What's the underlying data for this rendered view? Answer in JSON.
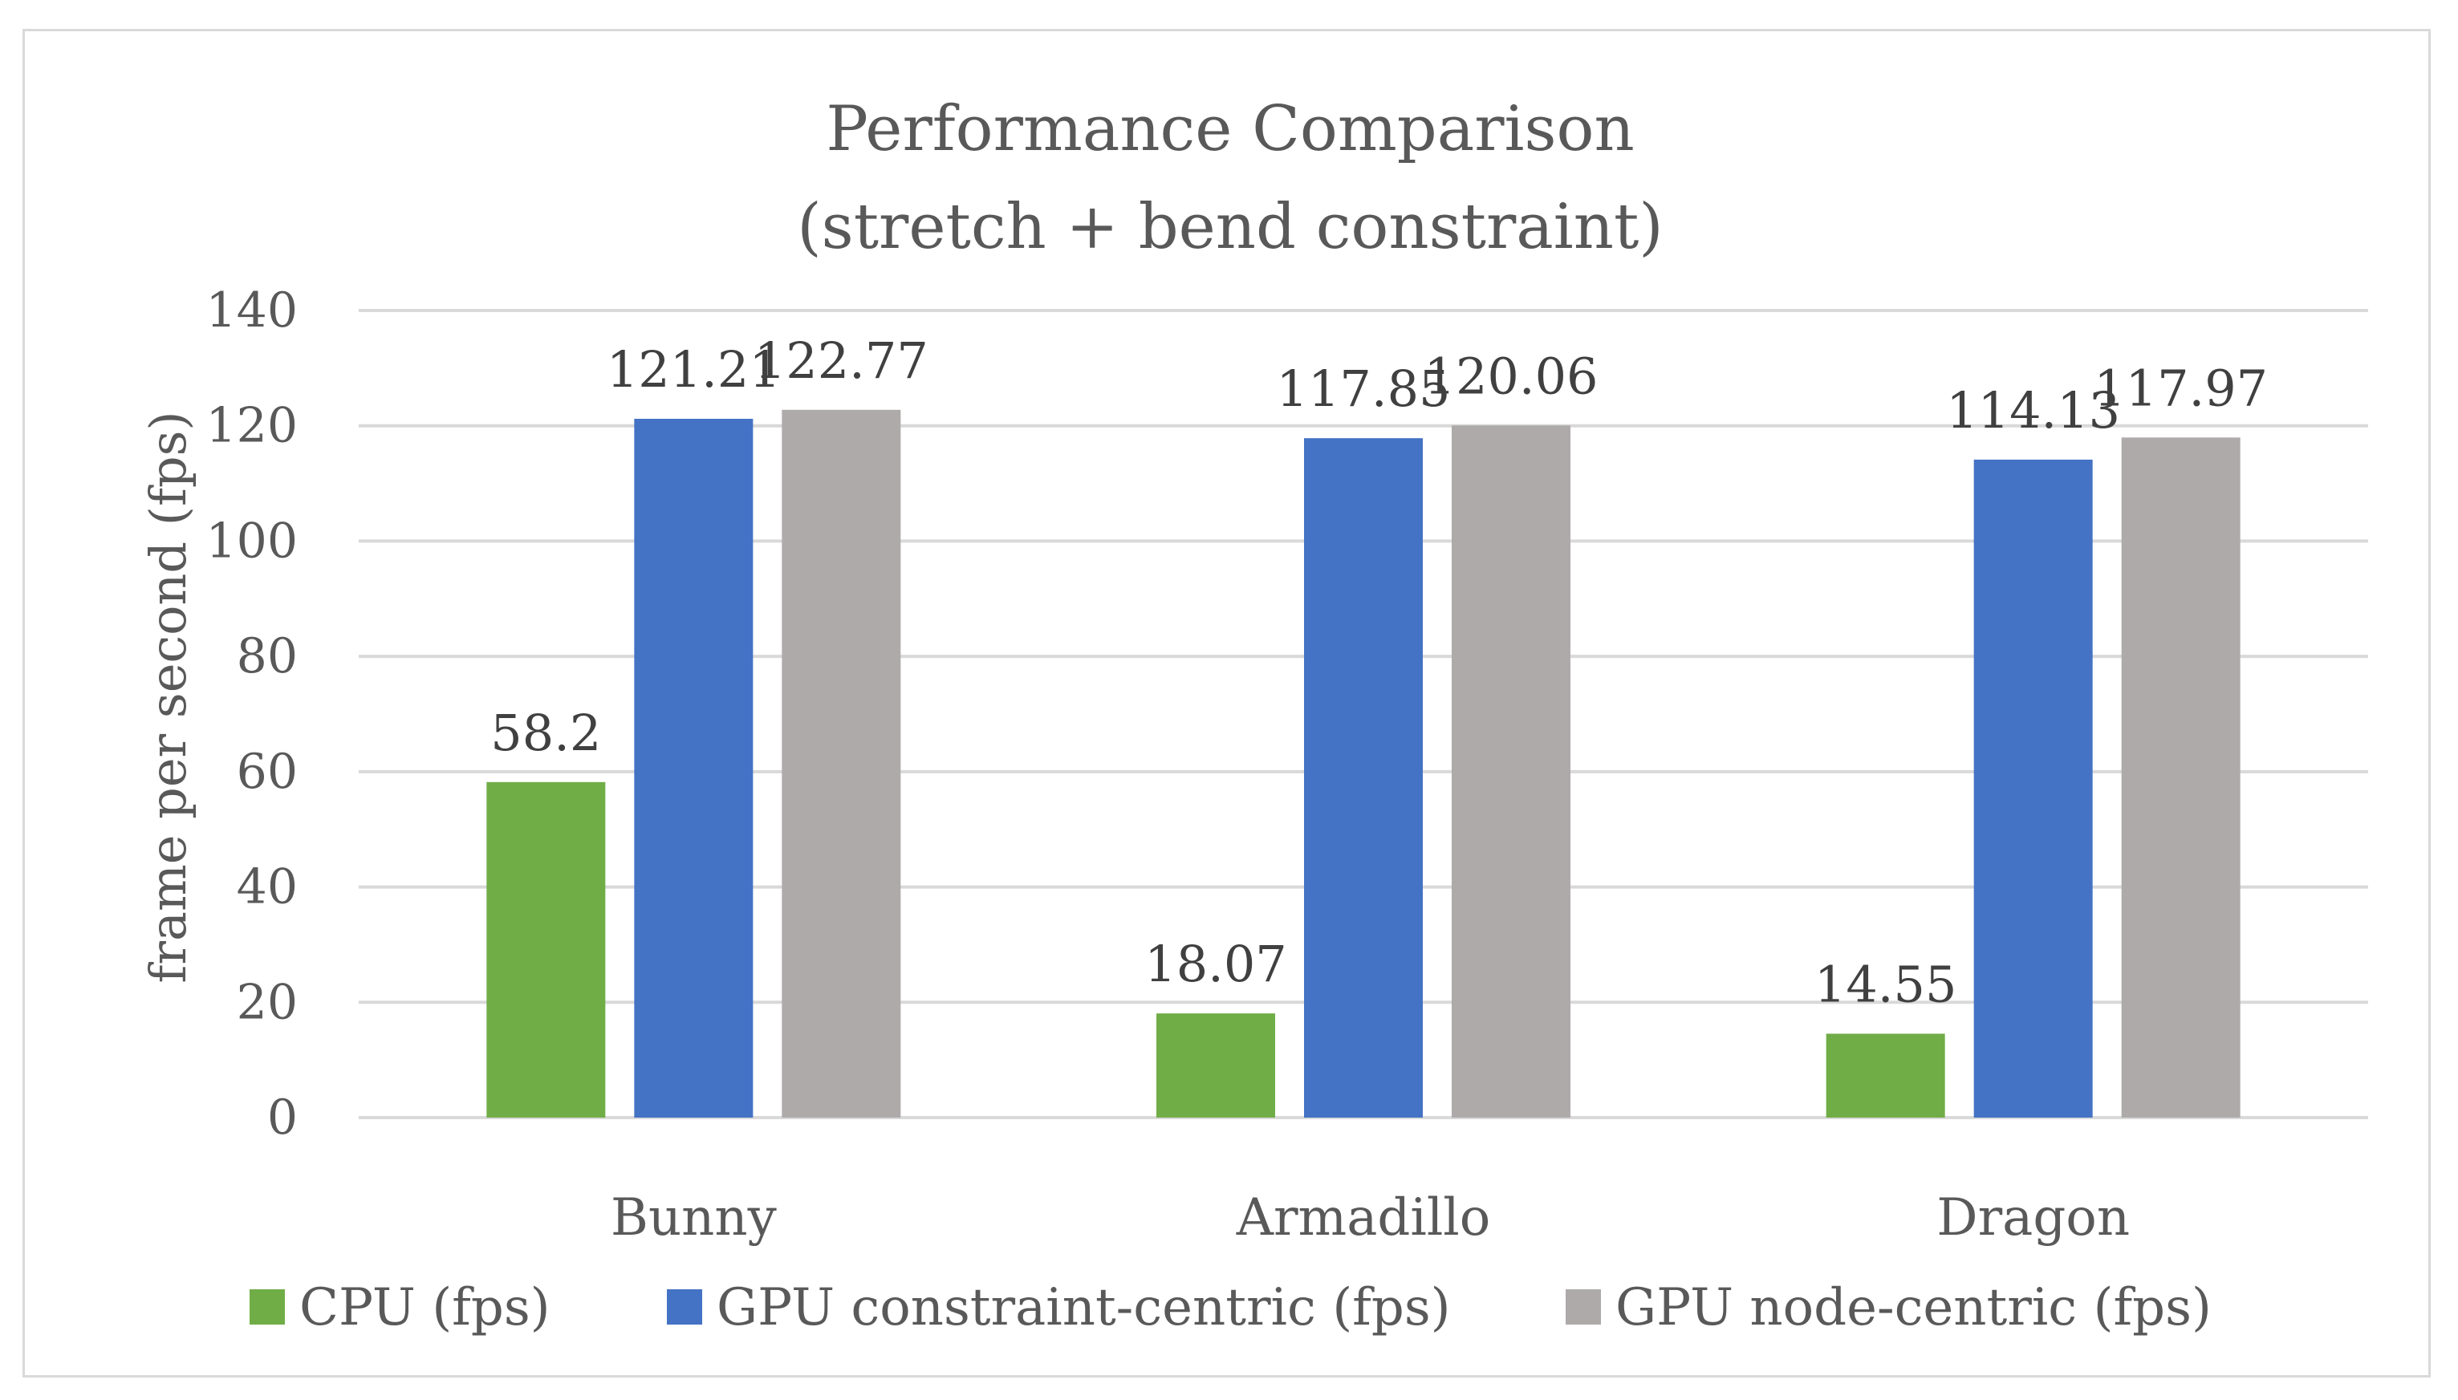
{
  "chart_data": {
    "type": "bar",
    "title": "Performance Comparison",
    "subtitle": "(stretch + bend constraint)",
    "ylabel": "frame per second (fps)",
    "xlabel": "",
    "categories": [
      "Bunny",
      "Armadillo",
      "Dragon"
    ],
    "series": [
      {
        "name": "CPU (fps)",
        "color": "#70ad47",
        "values": [
          58.2,
          18.07,
          14.55
        ],
        "labels": [
          "58.2",
          "18.07",
          "14.55"
        ]
      },
      {
        "name": "GPU constraint-centric (fps)",
        "color": "#4472c4",
        "values": [
          121.21,
          117.85,
          114.13
        ],
        "labels": [
          "121.21",
          "117.85",
          "114.13"
        ]
      },
      {
        "name": "GPU node-centric (fps)",
        "color": "#aeaaaa",
        "values": [
          122.77,
          120.06,
          117.97
        ],
        "labels": [
          "122.77",
          "120.06",
          "117.97"
        ]
      }
    ],
    "ylim": [
      0,
      140
    ],
    "yticks": [
      "0",
      "20",
      "40",
      "60",
      "80",
      "100",
      "120",
      "140"
    ],
    "grid": true,
    "gridline_color": "#d9d9d9",
    "legend_position": "bottom"
  }
}
